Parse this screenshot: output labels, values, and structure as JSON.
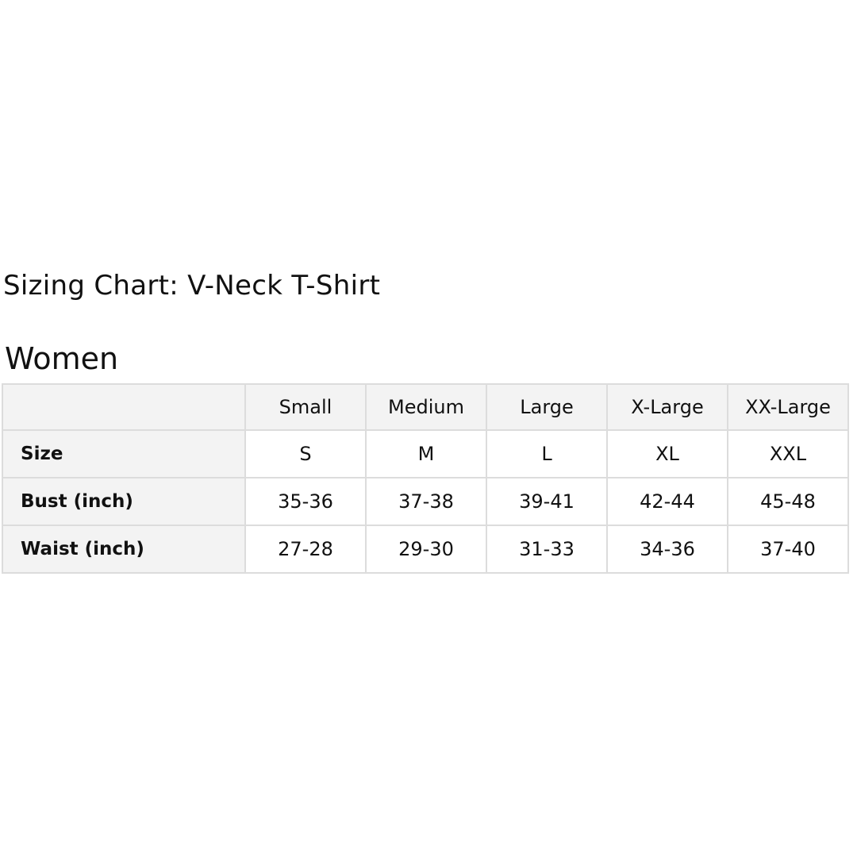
{
  "title": "Sizing Chart: V-Neck T-Shirt",
  "section": "Women",
  "table": {
    "columns": [
      "",
      "Small",
      "Medium",
      "Large",
      "X-Large",
      "XX-Large"
    ],
    "rows": [
      {
        "label": "Size",
        "values": [
          "S",
          "M",
          "L",
          "XL",
          "XXL"
        ]
      },
      {
        "label": "Bust (inch)",
        "values": [
          "35-36",
          "37-38",
          "39-41",
          "42-44",
          "45-48"
        ]
      },
      {
        "label": "Waist (inch)",
        "values": [
          "27-28",
          "29-30",
          "31-33",
          "34-36",
          "37-40"
        ]
      }
    ]
  },
  "colors": {
    "header_bg": "#f3f3f3",
    "border": "#dcdcdc"
  }
}
